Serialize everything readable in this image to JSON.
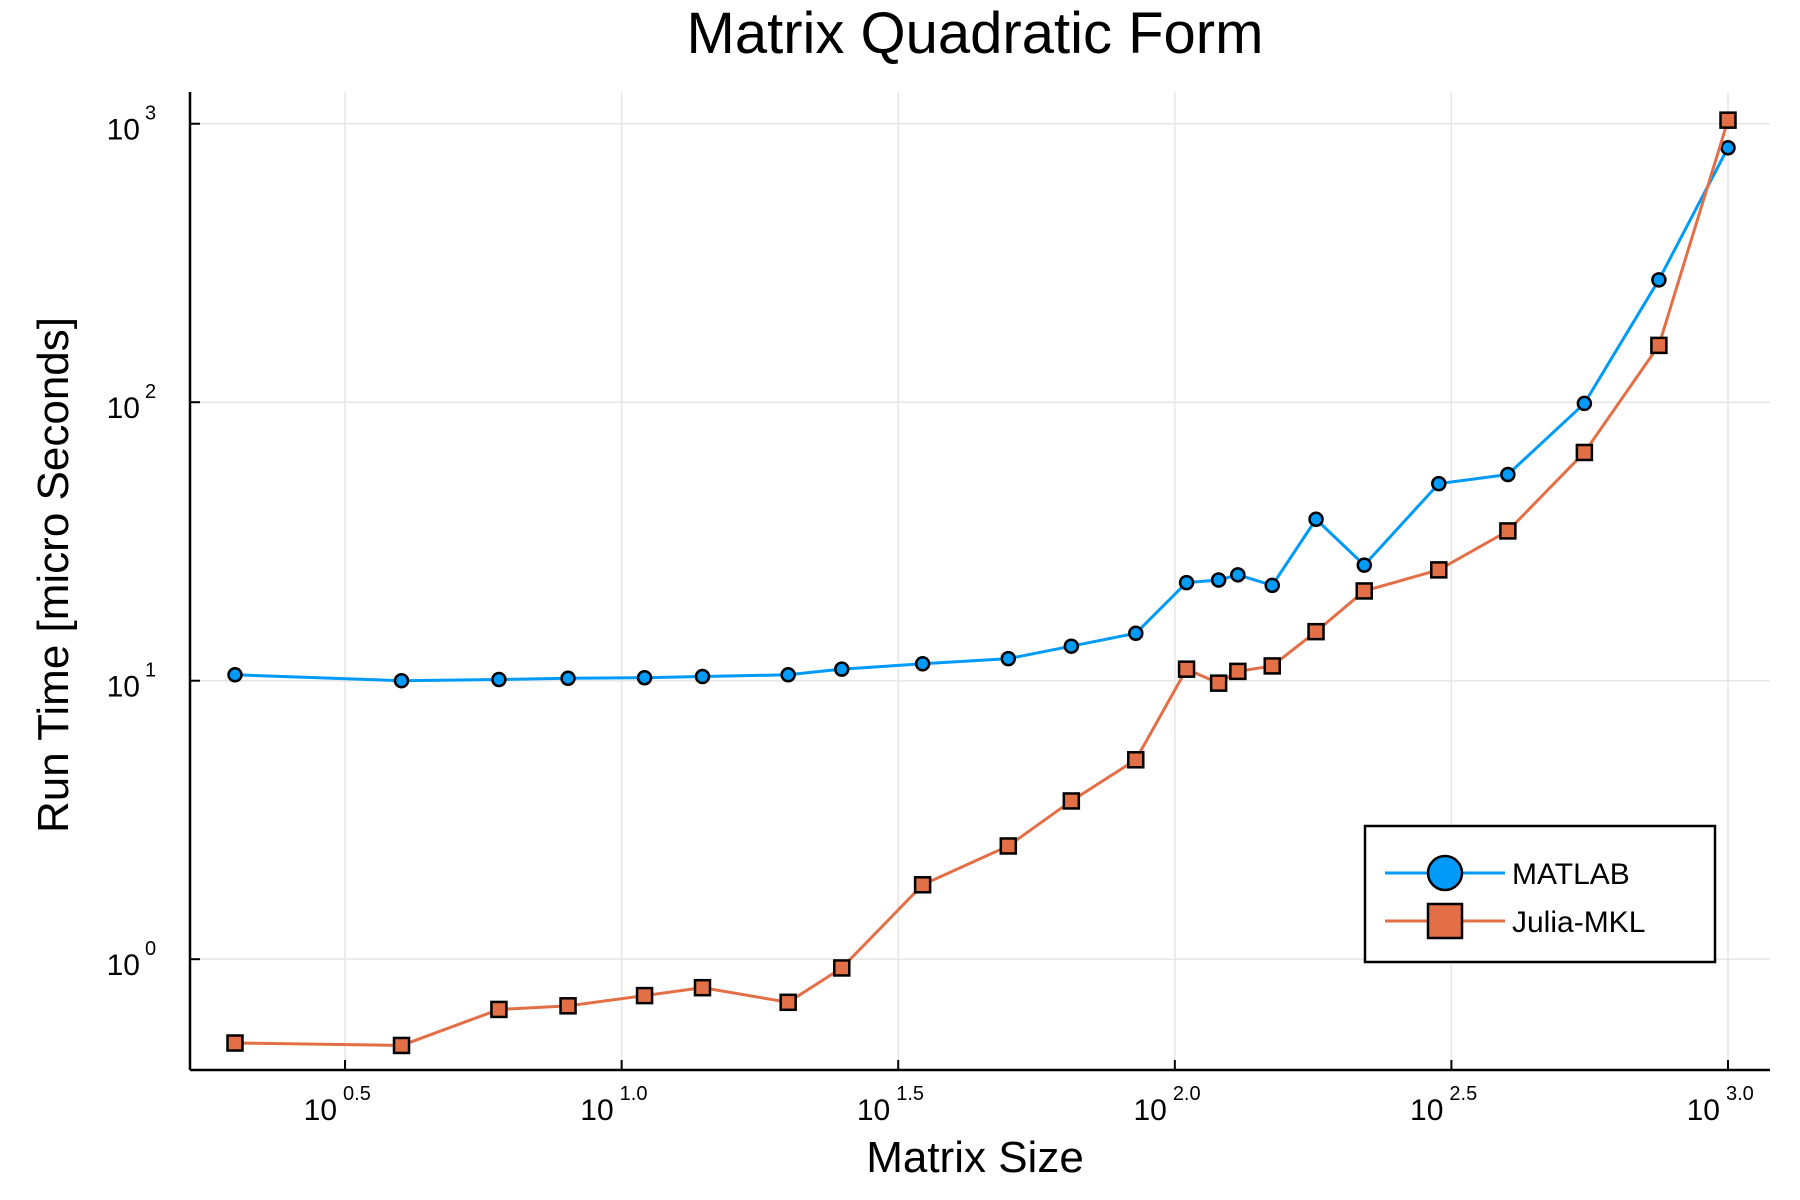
{
  "chart_data": {
    "type": "line",
    "title": "Matrix Quadratic Form",
    "xlabel": "Matrix Size",
    "ylabel": "Run Time  [micro Seconds]",
    "xscale": "log10",
    "yscale": "log10",
    "xlim": [
      2,
      1000
    ],
    "ylim": [
      0.4,
      1300
    ],
    "grid": true,
    "legend_position": "bottom-right",
    "x_ticks": [
      {
        "base": "10",
        "exp": "0.5",
        "value": 3.162
      },
      {
        "base": "10",
        "exp": "1.0",
        "value": 10
      },
      {
        "base": "10",
        "exp": "1.5",
        "value": 31.62
      },
      {
        "base": "10",
        "exp": "2.0",
        "value": 100
      },
      {
        "base": "10",
        "exp": "2.5",
        "value": 316.2
      },
      {
        "base": "10",
        "exp": "3.0",
        "value": 1000
      }
    ],
    "y_ticks": [
      {
        "base": "10",
        "exp": "0",
        "value": 1
      },
      {
        "base": "10",
        "exp": "1",
        "value": 10
      },
      {
        "base": "10",
        "exp": "2",
        "value": 100
      },
      {
        "base": "10",
        "exp": "3",
        "value": 1000
      }
    ],
    "x": [
      2,
      4,
      6,
      8,
      11,
      14,
      20,
      25,
      35,
      50,
      65,
      85,
      105,
      120,
      130,
      150,
      180,
      220,
      300,
      400,
      550,
      750,
      1000
    ],
    "series": [
      {
        "name": "MATLAB",
        "color": "#009af9",
        "marker": "circle",
        "values": [
          10.5,
          10.0,
          10.1,
          10.2,
          10.25,
          10.35,
          10.5,
          11.0,
          11.5,
          12.0,
          13.3,
          14.8,
          22.5,
          23.0,
          24.0,
          22.0,
          38.0,
          26.0,
          51.0,
          55.0,
          99.0,
          275.0,
          820.0
        ]
      },
      {
        "name": "Julia-MKL",
        "color": "#e26f46",
        "marker": "square",
        "values": [
          0.5,
          0.49,
          0.66,
          0.68,
          0.74,
          0.79,
          0.7,
          0.93,
          1.85,
          2.55,
          3.7,
          5.2,
          11.0,
          9.8,
          10.8,
          11.3,
          15.0,
          21.0,
          25.0,
          34.5,
          66.0,
          160.0,
          1030.0
        ]
      }
    ]
  }
}
